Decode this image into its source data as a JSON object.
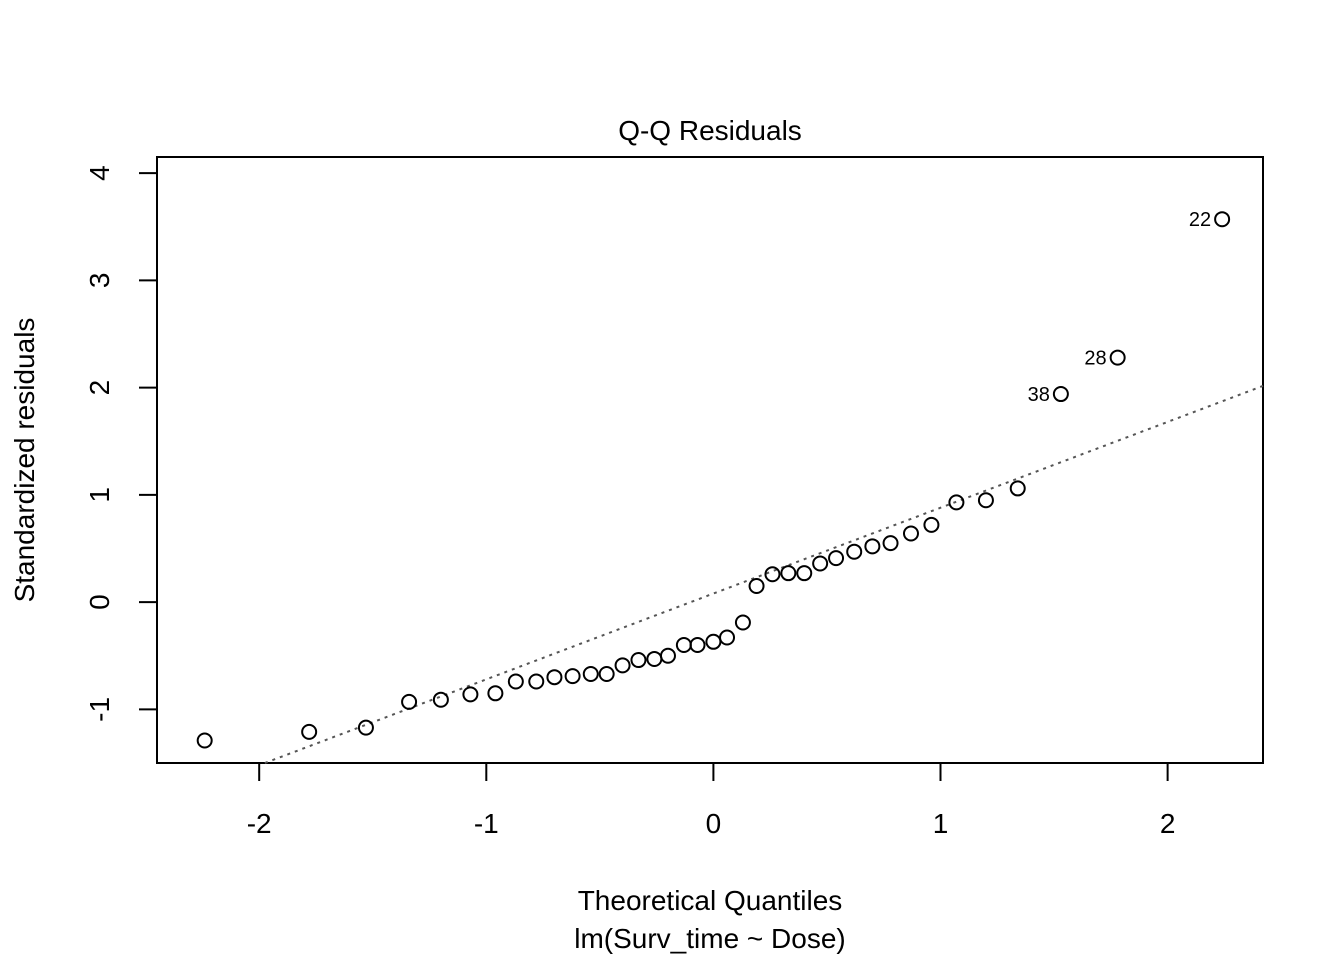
{
  "chart_data": {
    "type": "scatter",
    "title": "Q-Q Residuals",
    "xlabel": "Theoretical Quantiles",
    "xlabel_sub": "lm(Surv_time ~ Dose)",
    "ylabel": "Standardized residuals",
    "xlim": [
      -2.45,
      2.42
    ],
    "ylim": [
      -1.5,
      4.15
    ],
    "x_ticks": [
      -2,
      -1,
      0,
      1,
      2
    ],
    "y_ticks": [
      -1,
      0,
      1,
      2,
      3,
      4
    ],
    "x_tick_labels": [
      "-2",
      "-1",
      "0",
      "1",
      "2"
    ],
    "y_tick_labels": [
      "-1",
      "0",
      "1",
      "2",
      "3",
      "4"
    ],
    "reference_line": {
      "slope": 0.8,
      "intercept": 0.08,
      "style": "dotted",
      "color": "#555555"
    },
    "point_color": "#000000",
    "points": [
      {
        "x": -2.24,
        "y": -1.29
      },
      {
        "x": -1.78,
        "y": -1.21
      },
      {
        "x": -1.53,
        "y": -1.17
      },
      {
        "x": -1.34,
        "y": -0.93
      },
      {
        "x": -1.2,
        "y": -0.91
      },
      {
        "x": -1.07,
        "y": -0.86
      },
      {
        "x": -0.96,
        "y": -0.85
      },
      {
        "x": -0.87,
        "y": -0.74
      },
      {
        "x": -0.78,
        "y": -0.74
      },
      {
        "x": -0.7,
        "y": -0.7
      },
      {
        "x": -0.62,
        "y": -0.69
      },
      {
        "x": -0.54,
        "y": -0.67
      },
      {
        "x": -0.47,
        "y": -0.67
      },
      {
        "x": -0.4,
        "y": -0.59
      },
      {
        "x": -0.33,
        "y": -0.54
      },
      {
        "x": -0.26,
        "y": -0.53
      },
      {
        "x": -0.2,
        "y": -0.5
      },
      {
        "x": -0.13,
        "y": -0.4
      },
      {
        "x": -0.07,
        "y": -0.4
      },
      {
        "x": 0.0,
        "y": -0.37
      },
      {
        "x": 0.06,
        "y": -0.33
      },
      {
        "x": 0.13,
        "y": -0.19
      },
      {
        "x": 0.19,
        "y": 0.15
      },
      {
        "x": 0.26,
        "y": 0.26
      },
      {
        "x": 0.33,
        "y": 0.27
      },
      {
        "x": 0.4,
        "y": 0.27
      },
      {
        "x": 0.47,
        "y": 0.36
      },
      {
        "x": 0.54,
        "y": 0.41
      },
      {
        "x": 0.62,
        "y": 0.47
      },
      {
        "x": 0.7,
        "y": 0.52
      },
      {
        "x": 0.78,
        "y": 0.55
      },
      {
        "x": 0.87,
        "y": 0.64
      },
      {
        "x": 0.96,
        "y": 0.72
      },
      {
        "x": 1.07,
        "y": 0.93
      },
      {
        "x": 1.2,
        "y": 0.95
      },
      {
        "x": 1.34,
        "y": 1.06
      },
      {
        "x": 1.53,
        "y": 1.94,
        "label": "38"
      },
      {
        "x": 1.78,
        "y": 2.28,
        "label": "28"
      },
      {
        "x": 2.24,
        "y": 3.57,
        "label": "22"
      }
    ]
  }
}
